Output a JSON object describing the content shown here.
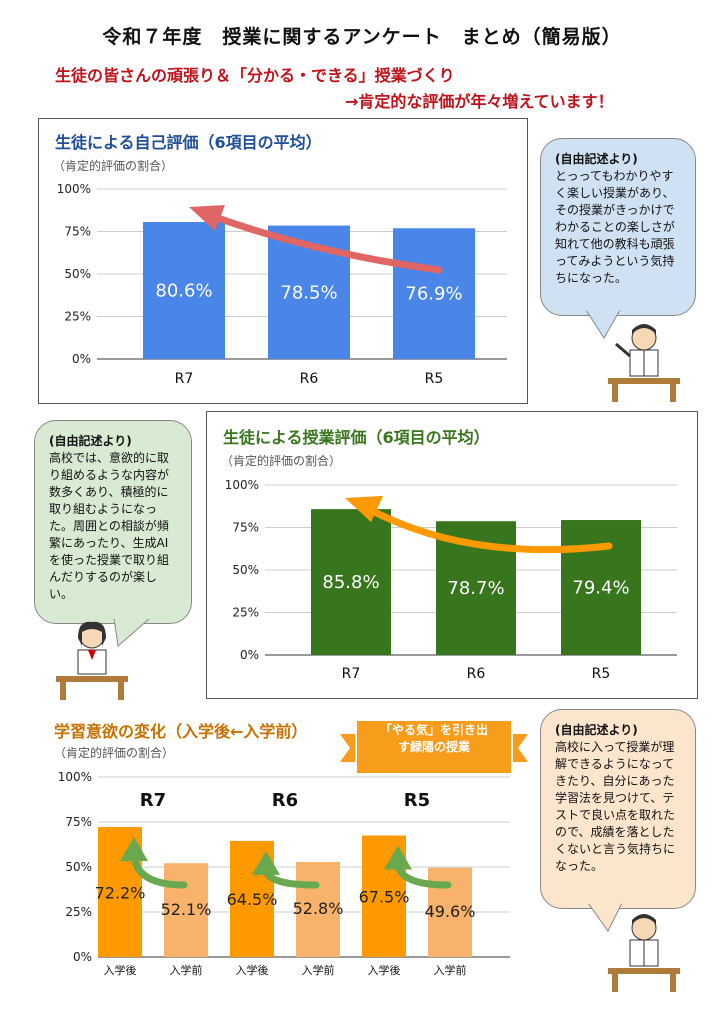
{
  "header": {
    "title": "令和７年度　授業に関するアンケート　まとめ（簡易版）",
    "subtitle_line1": "生徒の皆さんの頑張り＆「分かる・できる」授業づくり",
    "subtitle_line2": "→肯定的な評価が年々増えています！"
  },
  "colors": {
    "blue": "#4a86e8",
    "green": "#38761d",
    "orange": "#ff9900",
    "light_orange": "#f9b26b",
    "red_text": "#c0121b"
  },
  "chart_data": [
    {
      "type": "bar",
      "title": "生徒による自己評価（6項目の平均）",
      "subtitle": "（肯定的評価の割合）",
      "categories": [
        "R7",
        "R6",
        "R5"
      ],
      "values": [
        80.6,
        78.5,
        76.9
      ],
      "value_labels": [
        "80.6%",
        "78.5%",
        "76.9%"
      ],
      "ylim": [
        0,
        100
      ],
      "yticks": [
        "0%",
        "25%",
        "50%",
        "75%",
        "100%"
      ],
      "color": "#4a86e8"
    },
    {
      "type": "bar",
      "title": "生徒による授業評価（6項目の平均）",
      "subtitle": "（肯定的評価の割合）",
      "categories": [
        "R7",
        "R6",
        "R5"
      ],
      "values": [
        85.8,
        78.7,
        79.4
      ],
      "value_labels": [
        "85.8%",
        "78.7%",
        "79.4%"
      ],
      "ylim": [
        0,
        100
      ],
      "yticks": [
        "0%",
        "25%",
        "50%",
        "75%",
        "100%"
      ],
      "color": "#38761d"
    },
    {
      "type": "bar",
      "title": "学習意欲の変化（入学後←入学前）",
      "subtitle": "（肯定的評価の割合）",
      "groups": [
        "R7",
        "R6",
        "R5"
      ],
      "categories": [
        "入学後",
        "入学前",
        "入学後",
        "入学前",
        "入学後",
        "入学前"
      ],
      "values": [
        72.2,
        52.1,
        64.5,
        52.8,
        67.5,
        49.6
      ],
      "value_labels": [
        "72.2%",
        "52.1%",
        "64.5%",
        "52.8%",
        "67.5%",
        "49.6%"
      ],
      "ylim": [
        0,
        100
      ],
      "yticks": [
        "0%",
        "25%",
        "50%",
        "75%",
        "100%"
      ],
      "colors": [
        "#ff9900",
        "#f9b26b"
      ]
    }
  ],
  "ribbon": {
    "line1": "「やる気」を引き出",
    "line2": "す緑陽の授業"
  },
  "bubbles": [
    {
      "heading": "(自由記述より)",
      "text": "とっってもわかりやすく楽しい授業があり、その授業がきっかけでわかることの楽しさが知れて他の教科も頑張ってみようという気持ちになった。",
      "color": "#cfe2f3"
    },
    {
      "heading": "(自由記述より)",
      "text": "高校では、意欲的に取り組めるような内容が数多くあり、積極的に取り組むようになった。周囲との相談が頻繁にあったり、生成AIを使った授業で取り組んだりするのが楽しい。",
      "color": "#d9ead3"
    },
    {
      "heading": "(自由記述より)",
      "text": "高校に入って授業が理解できるようになってきたり、自分にあった学習法を見つけて、テストで良い点を取れたので、成績を落としたくないと言う気持ちになった。",
      "color": "#fce5cd"
    }
  ]
}
